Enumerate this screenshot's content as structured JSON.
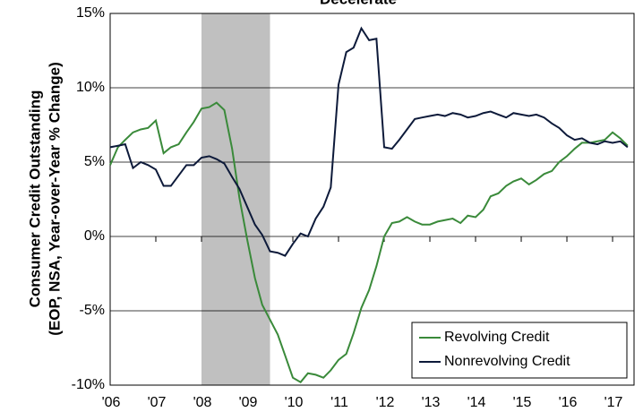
{
  "chart_data": {
    "type": "line",
    "title": "Decelerate",
    "y_label": [
      "Consumer Credit Outstanding",
      "(EOP, NSA, Year-over-Year % Change)"
    ],
    "x": [
      2006.0,
      2006.17,
      2006.33,
      2006.5,
      2006.67,
      2006.83,
      2007.0,
      2007.17,
      2007.33,
      2007.5,
      2007.67,
      2007.83,
      2008.0,
      2008.17,
      2008.33,
      2008.5,
      2008.67,
      2008.83,
      2009.0,
      2009.17,
      2009.33,
      2009.5,
      2009.67,
      2009.83,
      2010.0,
      2010.17,
      2010.33,
      2010.5,
      2010.67,
      2010.83,
      2011.0,
      2011.17,
      2011.33,
      2011.5,
      2011.67,
      2011.83,
      2012.0,
      2012.17,
      2012.33,
      2012.5,
      2012.67,
      2012.83,
      2013.0,
      2013.17,
      2013.33,
      2013.5,
      2013.67,
      2013.83,
      2014.0,
      2014.17,
      2014.33,
      2014.5,
      2014.67,
      2014.83,
      2015.0,
      2015.17,
      2015.33,
      2015.5,
      2015.67,
      2015.83,
      2016.0,
      2016.17,
      2016.33,
      2016.5,
      2016.67,
      2016.83,
      2017.0,
      2017.17,
      2017.33
    ],
    "series": [
      {
        "name": "Revolving Credit",
        "color": "#3a8a3a",
        "values": [
          4.8,
          6.0,
          6.5,
          7.0,
          7.2,
          7.3,
          7.8,
          5.6,
          6.0,
          6.2,
          7.0,
          7.7,
          8.6,
          8.7,
          9.0,
          8.5,
          5.9,
          2.6,
          -0.2,
          -2.8,
          -4.6,
          -5.6,
          -6.6,
          -8.0,
          -9.5,
          -9.8,
          -9.2,
          -9.3,
          -9.5,
          -9.0,
          -8.3,
          -7.9,
          -6.5,
          -4.8,
          -3.6,
          -2.0,
          0.0,
          0.9,
          1.0,
          1.3,
          1.0,
          0.8,
          0.8,
          1.0,
          1.1,
          1.2,
          0.9,
          1.4,
          1.3,
          1.8,
          2.7,
          2.9,
          3.4,
          3.7,
          3.9,
          3.5,
          3.8,
          4.2,
          4.4,
          5.0,
          5.4,
          5.9,
          6.3,
          6.3,
          6.4,
          6.5,
          7.0,
          6.6,
          6.1
        ]
      },
      {
        "name": "Nonrevolving Credit",
        "color": "#0d1a3a",
        "values": [
          6.0,
          6.1,
          6.2,
          4.6,
          5.0,
          4.8,
          4.5,
          3.4,
          3.4,
          4.1,
          4.8,
          4.8,
          5.3,
          5.4,
          5.2,
          4.9,
          4.0,
          3.2,
          2.0,
          0.8,
          0.1,
          -1.0,
          -1.1,
          -1.3,
          -0.5,
          0.2,
          0.0,
          1.2,
          2.0,
          3.3,
          10.2,
          12.4,
          12.7,
          14.0,
          13.2,
          13.3,
          6.0,
          5.9,
          6.5,
          7.2,
          7.9,
          8.0,
          8.1,
          8.2,
          8.1,
          8.3,
          8.2,
          8.0,
          8.1,
          8.3,
          8.4,
          8.2,
          8.0,
          8.3,
          8.2,
          8.1,
          8.2,
          8.0,
          7.6,
          7.3,
          6.8,
          6.5,
          6.6,
          6.3,
          6.2,
          6.4,
          6.3,
          6.4,
          6.0
        ]
      }
    ],
    "recessions": [
      [
        2008.0,
        2009.5
      ]
    ],
    "recession_color": "#c0c0c0",
    "xlim": [
      2006.0,
      2017.47
    ],
    "xticks": [
      {
        "value": 2006,
        "label": "'06"
      },
      {
        "value": 2007,
        "label": "'07"
      },
      {
        "value": 2008,
        "label": "'08"
      },
      {
        "value": 2009,
        "label": "'09"
      },
      {
        "value": 2010,
        "label": "'10"
      },
      {
        "value": 2011,
        "label": "'11"
      },
      {
        "value": 2012,
        "label": "'12"
      },
      {
        "value": 2013,
        "label": "'13"
      },
      {
        "value": 2014,
        "label": "'14"
      },
      {
        "value": 2015,
        "label": "'15"
      },
      {
        "value": 2016,
        "label": "'16"
      },
      {
        "value": 2017,
        "label": "'17"
      }
    ],
    "ylim": [
      -10,
      15
    ],
    "yticks": [
      {
        "value": -10,
        "label": "-10%"
      },
      {
        "value": -5,
        "label": "-5%"
      },
      {
        "value": 0,
        "label": "0%"
      },
      {
        "value": 5,
        "label": "5%"
      },
      {
        "value": 10,
        "label": "10%"
      },
      {
        "value": 15,
        "label": "15%"
      }
    ],
    "grid": true,
    "legend": "lower right"
  }
}
